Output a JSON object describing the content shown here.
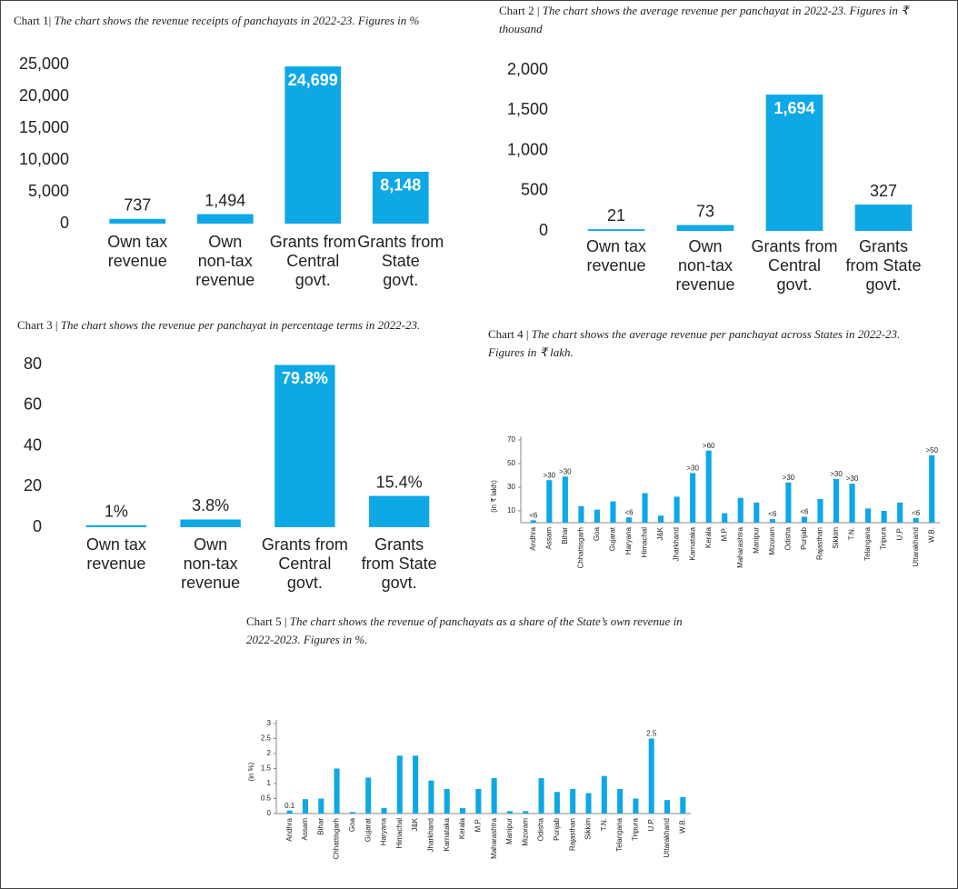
{
  "chart_data": [
    {
      "type": "bar",
      "chart_label": "Chart 1|",
      "title": "The chart shows the revenue receipts of panchayats in 2022-23. Figures in %",
      "categories": [
        "Own tax\nrevenue",
        "Own\nnon-tax\nrevenue",
        "Grants from\nCentral\ngovt.",
        "Grants from\nState\ngovt."
      ],
      "values": [
        737,
        1494,
        24699,
        8148
      ],
      "value_labels": [
        "737",
        "1,494",
        "24,699",
        "8,148"
      ],
      "color": "#0ea8e6",
      "ylim": [
        0,
        25000
      ],
      "yticks": [
        0,
        {
          "value": 5000,
          "label": "5,000"
        },
        {
          "value": 10000,
          "label": "10,000"
        },
        {
          "value": 15000,
          "label": "15,000"
        },
        {
          "value": 20000,
          "label": "20,000"
        },
        {
          "value": 25000,
          "label": "25,000"
        }
      ]
    },
    {
      "type": "bar",
      "chart_label": "Chart 2 |",
      "title": "The chart shows the average revenue per panchayat in 2022-23. Figures in ₹ thousand",
      "categories": [
        "Own tax\nrevenue",
        "Own\nnon-tax\nrevenue",
        "Grants from\nCentral\ngovt.",
        "Grants\nfrom State\ngovt."
      ],
      "values": [
        21,
        73,
        1694,
        327
      ],
      "value_labels": [
        "21",
        "73",
        "1,694",
        "327"
      ],
      "color": "#0ea8e6",
      "ylim": [
        0,
        2000
      ],
      "yticks": [
        0,
        500,
        {
          "value": 1000,
          "label": "1,000"
        },
        {
          "value": 1500,
          "label": "1,500"
        },
        {
          "value": 2000,
          "label": "2,000"
        }
      ]
    },
    {
      "type": "bar",
      "chart_label": "Chart 3 |",
      "title": "The chart shows the revenue per panchayat in percentage terms in 2022-23.",
      "categories": [
        "Own tax\nrevenue",
        "Own\nnon-tax\nrevenue",
        "Grants from\nCentral\ngovt.",
        "Grants\nfrom State\ngovt."
      ],
      "values": [
        1,
        3.8,
        79.8,
        15.4
      ],
      "value_labels": [
        "1%",
        "3.8%",
        "79.8%",
        "15.4%"
      ],
      "color": "#0ea8e6",
      "ylim": [
        0,
        80
      ],
      "yticks": [
        0,
        20,
        40,
        60,
        80
      ]
    },
    {
      "type": "bar",
      "chart_label": "Chart 4 |",
      "title": "The chart shows the average revenue per panchayat across States in 2022-23. Figures in ₹ lakh.",
      "ylabel": "(in ₹ lakh)",
      "categories": [
        "Andhra",
        "Assam",
        "Bihar",
        "Chhattisgarh",
        "Goa",
        "Gujarat",
        "Haryana",
        "Himachal",
        "J&K",
        "Jharkhand",
        "Karnataka",
        "Kerala",
        "M.P.",
        "Maharashtra",
        "Manipur",
        "Mizoram",
        "Odisha",
        "Punjab",
        "Rajasthan",
        "Sikkim",
        "T.N.",
        "Telangana",
        "Tripura",
        "U.P.",
        "Uttarakhand",
        "W.B."
      ],
      "values": [
        2,
        36,
        39,
        14,
        11,
        18,
        4.5,
        25,
        6,
        22,
        42,
        61,
        8,
        21,
        17,
        3,
        34,
        5,
        20,
        37,
        33,
        12,
        10,
        17,
        4,
        57
      ],
      "value_labels": [
        "<6",
        ">30",
        ">30",
        null,
        null,
        null,
        "<6",
        null,
        null,
        null,
        ">30",
        ">60",
        null,
        null,
        null,
        "<6",
        ">30",
        "<6",
        null,
        ">30",
        ">30",
        null,
        null,
        null,
        "<6",
        ">50"
      ],
      "color": "#0ea8e6",
      "ylim": [
        0,
        70
      ],
      "yticks": [
        10,
        30,
        50,
        70
      ]
    },
    {
      "type": "bar",
      "chart_label": "Chart 5 |",
      "title": "The chart shows the revenue of panchayats as a share of the State’s own revenue in 2022-2023. Figures in %.",
      "ylabel": "(in %)",
      "categories": [
        "Andhra",
        "Assam",
        "Bihar",
        "Chhattisgarh",
        "Goa",
        "Gujarat",
        "Haryana",
        "Himachal",
        "J&K",
        "Jharkhand",
        "Karnataka",
        "Kerala",
        "M.P.",
        "Maharashtra",
        "Manipur",
        "Mizoram",
        "Odisha",
        "Punjab",
        "Rajasthan",
        "Sikkim",
        "T.N.",
        "Telangana",
        "Tripura",
        "U.P.",
        "Uttarakhand",
        "W.B."
      ],
      "values": [
        0.1,
        0.48,
        0.5,
        1.5,
        0.05,
        1.2,
        0.18,
        1.93,
        1.93,
        1.1,
        0.82,
        0.18,
        0.82,
        1.18,
        0.08,
        0.08,
        1.18,
        0.72,
        0.82,
        0.68,
        1.25,
        0.82,
        0.5,
        2.5,
        0.45,
        0.55
      ],
      "value_labels": [
        "0.1",
        null,
        null,
        null,
        null,
        null,
        null,
        null,
        null,
        null,
        null,
        null,
        null,
        null,
        null,
        null,
        null,
        null,
        null,
        null,
        null,
        null,
        null,
        "2.5",
        null,
        null
      ],
      "color": "#0ea8e6",
      "ylim": [
        0,
        3
      ],
      "yticks": [
        0,
        0.5,
        1,
        1.5,
        2,
        2.5,
        3
      ]
    }
  ]
}
